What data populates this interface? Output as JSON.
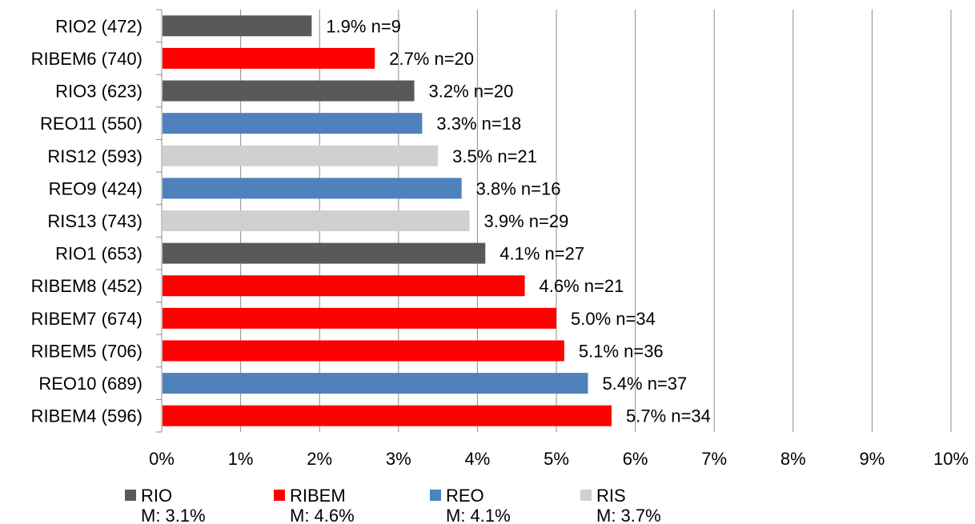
{
  "chart_data": {
    "type": "bar",
    "orientation": "horizontal",
    "categories": [
      "RIO2 (472)",
      "RIBEM6 (740)",
      "RIO3 (623)",
      "REO11 (550)",
      "RIS12 (593)",
      "REO9 (424)",
      "RIS13 (743)",
      "RIO1 (653)",
      "RIBEM8 (452)",
      "RIBEM7 (674)",
      "RIBEM5 (706)",
      "REO10 (689)",
      "RIBEM4 (596)"
    ],
    "values": [
      1.9,
      2.7,
      3.2,
      3.3,
      3.5,
      3.8,
      3.9,
      4.1,
      4.6,
      5.0,
      5.1,
      5.4,
      5.7
    ],
    "groups": [
      "RIO",
      "RIBEM",
      "RIO",
      "REO",
      "RIS",
      "REO",
      "RIS",
      "RIO",
      "RIBEM",
      "RIBEM",
      "RIBEM",
      "REO",
      "RIBEM"
    ],
    "data_labels": [
      "1.9% n=9",
      "2.7% n=20",
      "3.2% n=20",
      "3.3% n=18",
      "3.5% n=21",
      "3.8% n=16",
      "3.9% n=29",
      "4.1% n=27",
      "4.6% n=21",
      "5.0% n=34",
      "5.1% n=36",
      "5.4% n=37",
      "5.7% n=34"
    ],
    "x_ticks": [
      "0%",
      "1%",
      "2%",
      "3%",
      "4%",
      "5%",
      "6%",
      "7%",
      "8%",
      "9%",
      "10%"
    ],
    "xlim": [
      0,
      10
    ],
    "grid": true,
    "legend_position": "bottom",
    "legend": [
      {
        "name": "RIO",
        "mean": "M: 3.1%",
        "color": "#595959"
      },
      {
        "name": "RIBEM",
        "mean": "M: 4.6%",
        "color": "#ff0000"
      },
      {
        "name": "REO",
        "mean": "M: 4.1%",
        "color": "#4f81bd"
      },
      {
        "name": "RIS",
        "mean": "M: 3.7%",
        "color": "#d0d0d0"
      }
    ],
    "title": "",
    "xlabel": "",
    "ylabel": ""
  }
}
